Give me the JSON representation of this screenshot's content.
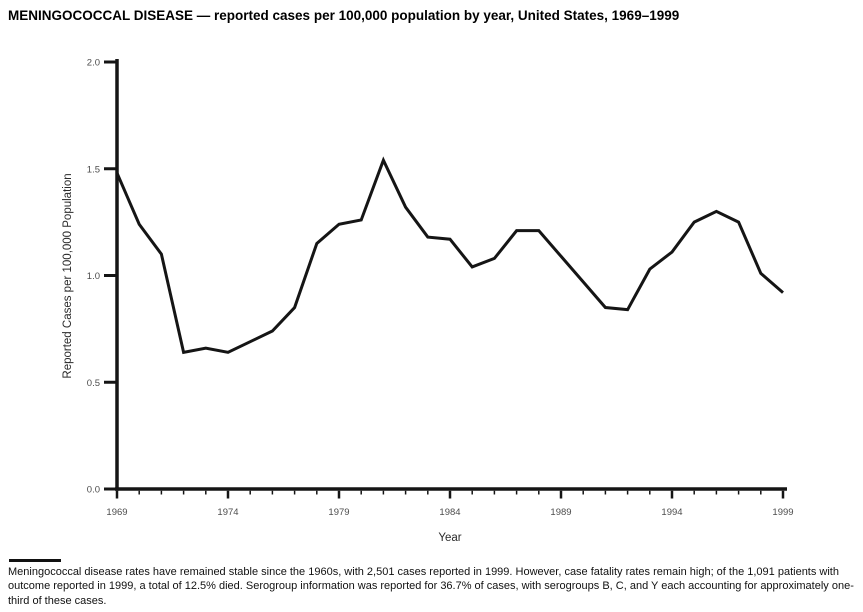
{
  "title": "MENINGOCOCCAL DISEASE — reported cases per 100,000 population by year, United States, 1969–1999",
  "footnote": "Meningococcal disease rates have remained stable since the 1960s, with 2,501 cases reported in 1999. However, case fatality rates remain high; of the 1,091 patients with outcome reported in 1999, a total of 12.5% died. Serogroup information was reported for 36.7% of cases, with serogroups B, C, and Y each accounting for approximately one-third of these cases.",
  "chart_data": {
    "type": "line",
    "title": "MENINGOCOCCAL DISEASE — reported cases per 100,000 population by year, United States, 1969–1999",
    "xlabel": "Year",
    "ylabel": "Reported Cases per 100,000 Population",
    "x": [
      1969,
      1970,
      1971,
      1972,
      1973,
      1974,
      1975,
      1976,
      1977,
      1978,
      1979,
      1980,
      1981,
      1982,
      1983,
      1984,
      1985,
      1986,
      1987,
      1988,
      1989,
      1990,
      1991,
      1992,
      1993,
      1994,
      1995,
      1996,
      1997,
      1998,
      1999
    ],
    "values": [
      1.48,
      1.24,
      1.1,
      0.64,
      0.66,
      0.64,
      0.69,
      0.74,
      0.85,
      1.15,
      1.24,
      1.26,
      1.54,
      1.32,
      1.18,
      1.17,
      1.04,
      1.08,
      1.21,
      1.21,
      1.09,
      0.97,
      0.85,
      0.84,
      1.03,
      1.11,
      1.25,
      1.3,
      1.25,
      1.01,
      0.92
    ],
    "xlim": [
      1969,
      1999
    ],
    "ylim": [
      0.0,
      2.0
    ],
    "yticks": [
      0.0,
      0.5,
      1.0,
      1.5,
      2.0
    ],
    "xticks": [
      1969,
      1974,
      1979,
      1984,
      1989,
      1994,
      1999
    ],
    "minor_xtick_interval": 1,
    "grid": false,
    "legend": null,
    "line_color": "#151515"
  }
}
